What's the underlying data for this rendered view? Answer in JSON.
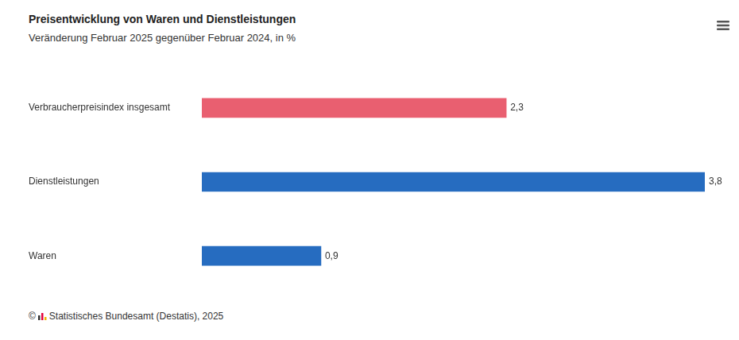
{
  "chart_data": {
    "type": "bar",
    "title": "Preisentwicklung von Waren und Dienstleistungen",
    "subtitle": "Veränderung Februar 2025 gegenüber Februar 2024, in %",
    "source": "© Statistisches Bundesamt (Destatis), 2025",
    "orientation": "horizontal",
    "categories": [
      "Verbraucherpreisindex insgesamt",
      "Dienstleistungen",
      "Waren"
    ],
    "values": [
      2.3,
      3.8,
      0.9
    ],
    "value_labels": [
      "2,3",
      "3,8",
      "0,9"
    ],
    "colors": [
      "#e95f70",
      "#266cc0",
      "#266cc0"
    ],
    "xlim": [
      0,
      3.8
    ],
    "data_labels": true,
    "tick_labels": "y",
    "grid": false
  }
}
